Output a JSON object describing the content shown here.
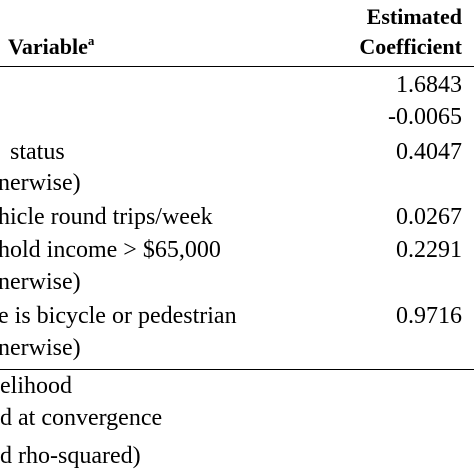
{
  "header": {
    "variable_label": "Variable",
    "variable_footnote": "a",
    "coefficient_line1": "Estimated",
    "coefficient_line2": "Coefficient"
  },
  "rows": [
    {
      "variable": "",
      "coefficient": "1.6843"
    },
    {
      "variable": "",
      "coefficient": "-0.0065"
    },
    {
      "variable": "status",
      "coefficient": "0.4047"
    },
    {
      "variable": "nerwise)",
      "coefficient": ""
    },
    {
      "variable": "hicle round trips/week",
      "coefficient": "0.0267"
    },
    {
      "variable": "hold income > $65,000",
      "coefficient": "0.2291"
    },
    {
      "variable": "nerwise)",
      "coefficient": ""
    },
    {
      "variable": "e is bicycle or pedestrian",
      "coefficient": "0.9716"
    },
    {
      "variable": "nerwise)",
      "coefficient": ""
    }
  ],
  "footer": [
    {
      "text": "elihood"
    },
    {
      "text": "d at convergence"
    },
    {
      "text": "d rho-squared)"
    }
  ]
}
